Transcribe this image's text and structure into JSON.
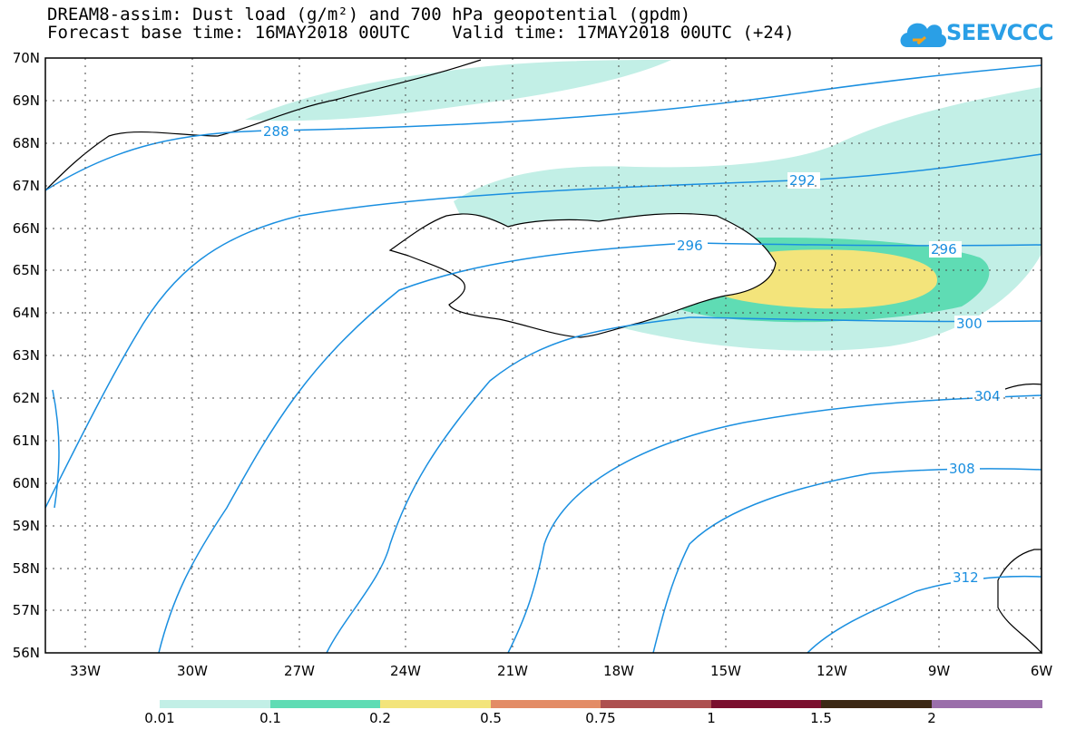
{
  "header": {
    "title_line1": "DREAM8-assim: Dust load (g/m²) and 700 hPa geopotential (gpdm)",
    "title_line2": "Forecast base time: 16MAY2018 00UTC    Valid time: 17MAY2018 00UTC (+24)"
  },
  "logo": {
    "text": "SEEVCCC",
    "icon": "cloud-icon",
    "color": "#2a9fe6"
  },
  "map": {
    "lat_labels": [
      "70N",
      "69N",
      "68N",
      "67N",
      "66N",
      "65N",
      "64N",
      "63N",
      "62N",
      "61N",
      "60N",
      "59N",
      "58N",
      "57N",
      "56N"
    ],
    "lon_labels": [
      "33W",
      "30W",
      "27W",
      "24W",
      "21W",
      "18W",
      "15W",
      "12W",
      "9W",
      "6W"
    ],
    "contour_labels": [
      "288",
      "292",
      "296",
      "296",
      "300",
      "304",
      "308",
      "312"
    ],
    "contour_color": "#1a8fe0"
  },
  "colorbar": {
    "labels": [
      "0.01",
      "0.1",
      "0.2",
      "0.5",
      "0.75",
      "1",
      "1.5",
      "2"
    ],
    "colors": [
      "#c2efe6",
      "#5fdcb4",
      "#f3e47b",
      "#e38c66",
      "#ad4f4f",
      "#7a0f2e",
      "#3b2814",
      "#9a6eaa"
    ]
  }
}
